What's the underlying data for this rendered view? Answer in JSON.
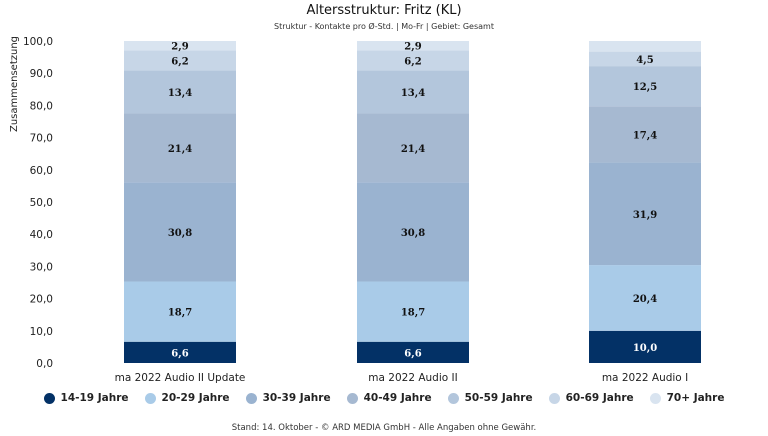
{
  "chart_data": {
    "type": "bar",
    "stacked": true,
    "title": "Altersstruktur: Fritz (KL)",
    "subtitle": "Struktur - Kontakte pro Ø-Std. | Mo-Fr | Gebiet: Gesamt",
    "ylabel": "Zusammensetzung",
    "ylim": [
      0,
      100
    ],
    "yticks": [
      "0,0",
      "10,0",
      "20,0",
      "30,0",
      "40,0",
      "50,0",
      "60,0",
      "70,0",
      "80,0",
      "90,0",
      "100,0"
    ],
    "categories": [
      "ma 2022 Audio II Update",
      "ma 2022 Audio II",
      "ma 2022 Audio I"
    ],
    "series": [
      {
        "name": "14-19 Jahre",
        "color": "#033166",
        "values": [
          6.6,
          6.6,
          10.0
        ],
        "labels": [
          "6,6",
          "6,6",
          "10,0"
        ]
      },
      {
        "name": "20-29 Jahre",
        "color": "#a9cbe8",
        "values": [
          18.7,
          18.7,
          20.4
        ],
        "labels": [
          "18,7",
          "18,7",
          "20,4"
        ]
      },
      {
        "name": "30-39 Jahre",
        "color": "#9ab3d0",
        "values": [
          30.8,
          30.8,
          31.9
        ],
        "labels": [
          "30,8",
          "30,8",
          "31,9"
        ]
      },
      {
        "name": "40-49 Jahre",
        "color": "#a6b9d1",
        "values": [
          21.4,
          21.4,
          17.4
        ],
        "labels": [
          "21,4",
          "21,4",
          "17,4"
        ]
      },
      {
        "name": "50-59 Jahre",
        "color": "#b3c6dc",
        "values": [
          13.4,
          13.4,
          12.5
        ],
        "labels": [
          "13,4",
          "13,4",
          "12,5"
        ]
      },
      {
        "name": "60-69 Jahre",
        "color": "#c7d6e7",
        "values": [
          6.2,
          6.2,
          4.5
        ],
        "labels": [
          "6,2",
          "6,2",
          "4,5"
        ]
      },
      {
        "name": "70+ Jahre",
        "color": "#d9e4f0",
        "values": [
          2.9,
          2.9,
          3.3
        ],
        "labels": [
          "2,9",
          "2,9",
          ""
        ]
      }
    ],
    "legend_position": "bottom"
  },
  "footer": "Stand: 14. Oktober - © ARD MEDIA GmbH - Alle Angaben ohne Gewähr."
}
